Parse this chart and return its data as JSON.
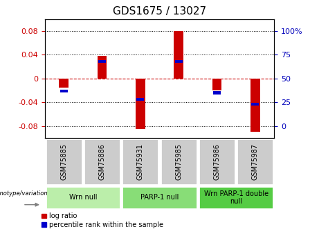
{
  "title": "GDS1675 / 13027",
  "samples": [
    "GSM75885",
    "GSM75886",
    "GSM75931",
    "GSM75985",
    "GSM75986",
    "GSM75987"
  ],
  "log_ratio": [
    -0.015,
    0.038,
    -0.085,
    0.08,
    -0.02,
    -0.09
  ],
  "percentile_rank": [
    37,
    68,
    28,
    68,
    35,
    23
  ],
  "groups": [
    {
      "label": "Wrn null",
      "color": "#bbeeaa",
      "start": 0,
      "end": 1
    },
    {
      "label": "PARP-1 null",
      "color": "#88dd77",
      "start": 2,
      "end": 3
    },
    {
      "label": "Wrn PARP-1 double\nnull",
      "color": "#55cc44",
      "start": 4,
      "end": 5
    }
  ],
  "ylim": [
    -0.1,
    0.1
  ],
  "yticks_left": [
    -0.08,
    -0.04,
    0.0,
    0.04,
    0.08
  ],
  "yticks_right": [
    0,
    25,
    50,
    75,
    100
  ],
  "bar_color_red": "#cc0000",
  "bar_color_blue": "#0000cc",
  "bar_width": 0.25,
  "background_plot": "#ffffff",
  "background_sample": "#cccccc",
  "ylabel_left_color": "#cc0000",
  "ylabel_right_color": "#0000bb",
  "zero_line_color": "#cc0000",
  "grid_color": "#000000",
  "title_fontsize": 11,
  "tick_fontsize": 8,
  "sample_fontsize": 7,
  "group_fontsize": 7,
  "legend_fontsize": 7
}
